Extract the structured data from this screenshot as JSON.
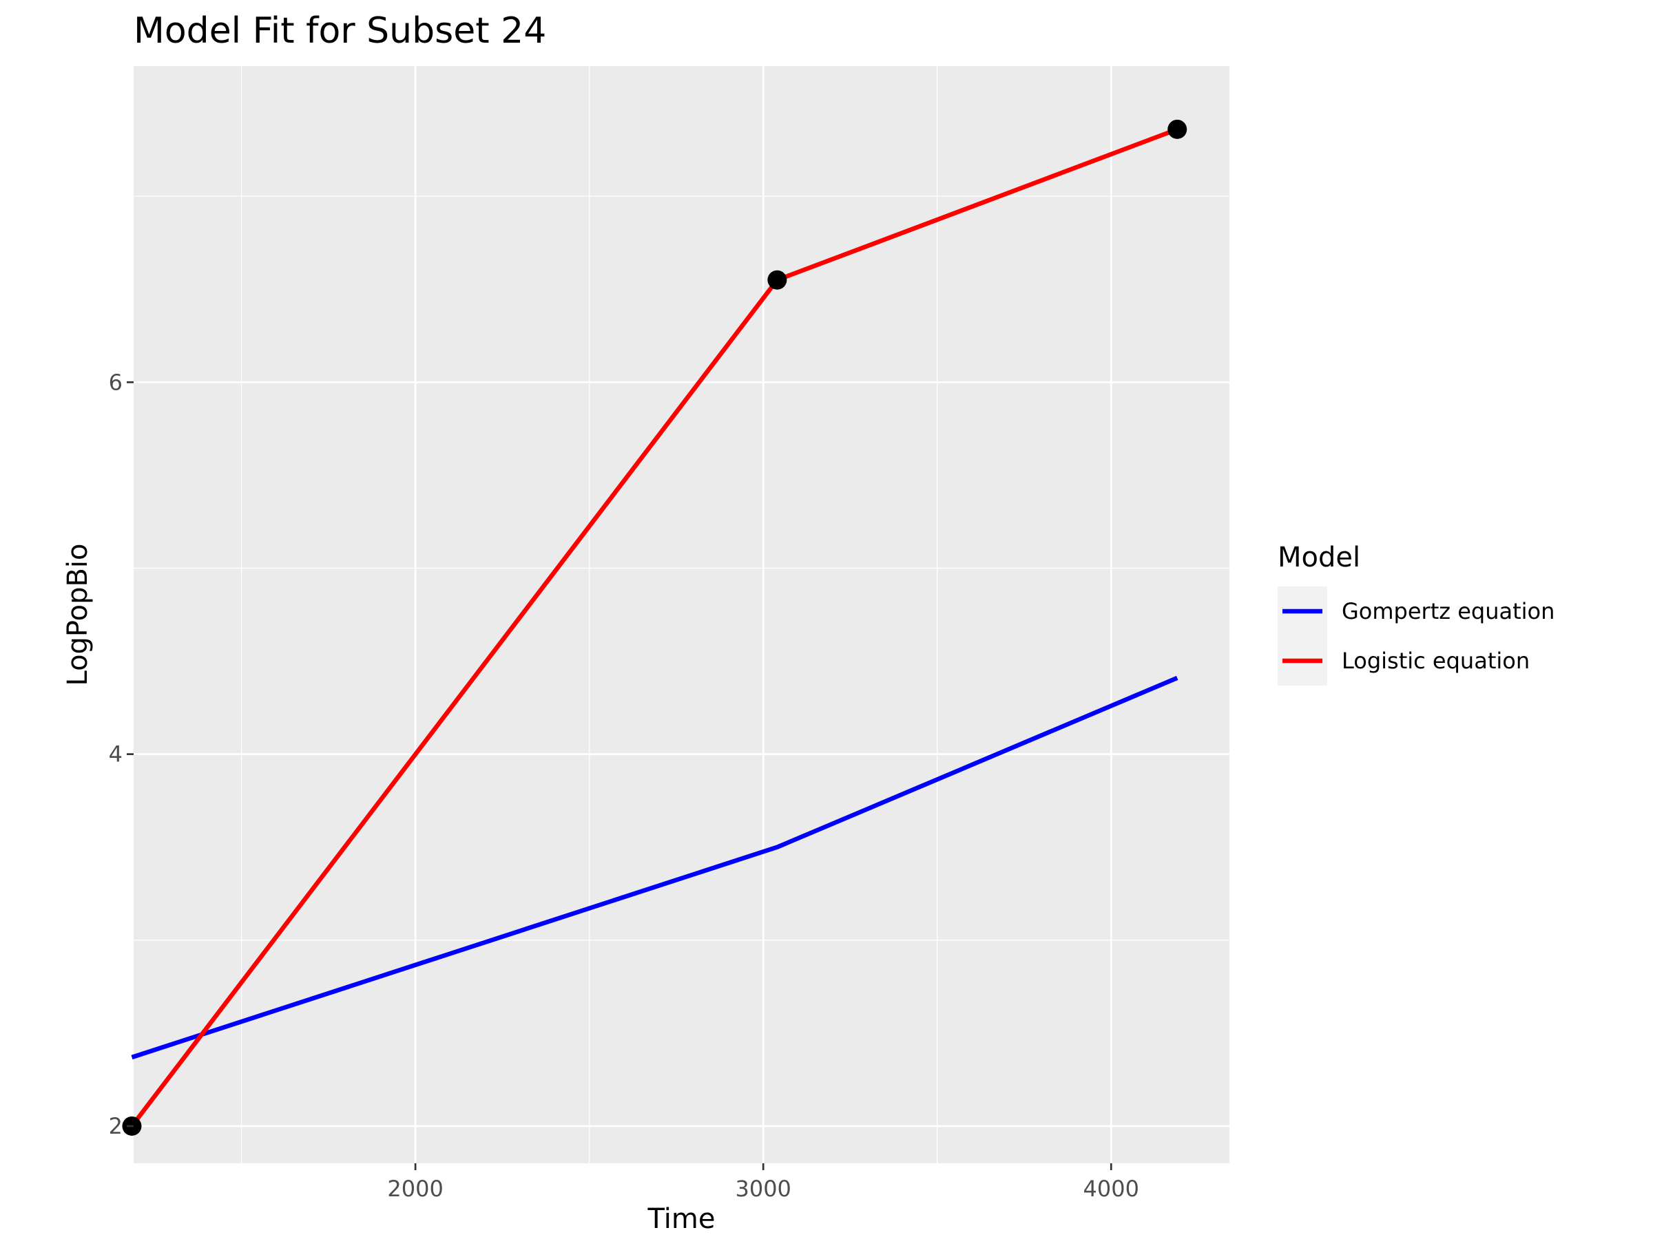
{
  "chart_data": {
    "type": "line",
    "title": "Model Fit for Subset 24",
    "xlabel": "Time",
    "ylabel": "LogPopBio",
    "xlim": [
      1190,
      4340
    ],
    "ylim": [
      1.8,
      7.7
    ],
    "x_ticks": [
      2000,
      3000,
      4000
    ],
    "x_tick_labels": [
      "2000",
      "3000",
      "4000"
    ],
    "y_ticks": [
      2,
      4,
      6
    ],
    "y_tick_labels": [
      "2",
      "4",
      "6"
    ],
    "x_minor_ticks": [
      1500,
      2500,
      3500
    ],
    "y_minor_ticks": [
      3,
      5,
      7
    ],
    "grid": true,
    "legend_position": "right",
    "legend_title": "Model",
    "points": {
      "x": [
        1185,
        3040,
        4190
      ],
      "y": [
        2.0,
        6.55,
        7.36
      ],
      "color": "#000000"
    },
    "series": [
      {
        "name": "Gompertz equation",
        "color": "#0000ff",
        "x": [
          1185,
          3040,
          4190
        ],
        "y": [
          2.37,
          3.5,
          4.41
        ]
      },
      {
        "name": "Logistic equation",
        "color": "#ff0000",
        "x": [
          1185,
          3040,
          4190
        ],
        "y": [
          2.0,
          6.55,
          7.36
        ]
      }
    ],
    "panel_background": "#ebebeb",
    "grid_color": "#ffffff"
  }
}
